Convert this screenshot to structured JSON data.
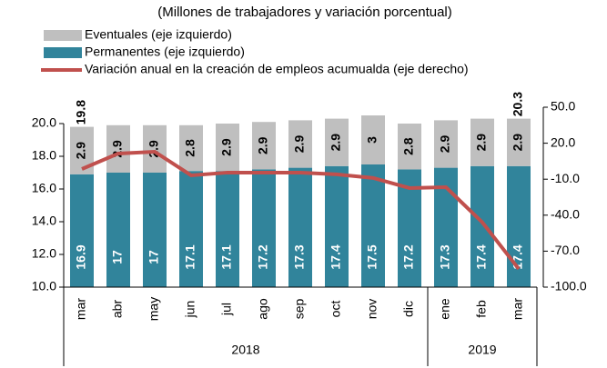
{
  "chart_data": {
    "type": "bar_line",
    "subtitle": "(Millones de trabajadores y variación porcentual)",
    "categories": [
      "mar",
      "abr",
      "may",
      "jun",
      "jul",
      "ago",
      "sep",
      "oct",
      "nov",
      "dic",
      "ene",
      "feb",
      "mar"
    ],
    "category_groups": [
      {
        "label": "2018",
        "count": 10
      },
      {
        "label": "2019",
        "count": 3
      }
    ],
    "series": [
      {
        "name": "Eventuales (eje izquierdo)",
        "color": "#bfbfbf",
        "kind": "bar",
        "values": [
          2.9,
          2.9,
          2.9,
          2.8,
          2.9,
          2.9,
          2.9,
          2.9,
          3.0,
          2.8,
          2.9,
          2.9,
          2.9
        ]
      },
      {
        "name": "Permanentes (eje izquierdo)",
        "color": "#31849b",
        "kind": "bar",
        "values": [
          16.9,
          17.0,
          17.0,
          17.1,
          17.1,
          17.2,
          17.3,
          17.4,
          17.5,
          17.2,
          17.3,
          17.4,
          17.4
        ]
      },
      {
        "name": "Variación anual en la creación de empleos acumualda (eje derecho)",
        "color": "#c0504d",
        "kind": "line",
        "axis": "y2",
        "values": [
          -1.5,
          11.4,
          12.9,
          -6.8,
          -4.5,
          -4.5,
          -4.5,
          -6.0,
          -9.0,
          -17.4,
          -16.7,
          -46.0,
          -84.8
        ]
      }
    ],
    "totals": [
      19.8,
      null,
      null,
      null,
      null,
      null,
      null,
      null,
      null,
      null,
      null,
      null,
      20.3
    ],
    "ylim": [
      10,
      20
    ],
    "yticks": [
      {
        "value": 10,
        "label": "10.0"
      },
      {
        "value": 12,
        "label": "12.0"
      },
      {
        "value": 14,
        "label": "14.0"
      },
      {
        "value": 16,
        "label": "16.0"
      },
      {
        "value": 18,
        "label": "18.0"
      },
      {
        "value": 20,
        "label": "20.0"
      }
    ],
    "y2lim": [
      -100,
      50
    ],
    "y2ticks": [
      {
        "value": -100,
        "label": "-100.0"
      },
      {
        "value": -70,
        "label": "-70.0"
      },
      {
        "value": -40,
        "label": "-40.0"
      },
      {
        "value": -10,
        "label": "-10.0"
      },
      {
        "value": 20,
        "label": "20.0"
      },
      {
        "value": 50,
        "label": "50.0"
      }
    ]
  }
}
